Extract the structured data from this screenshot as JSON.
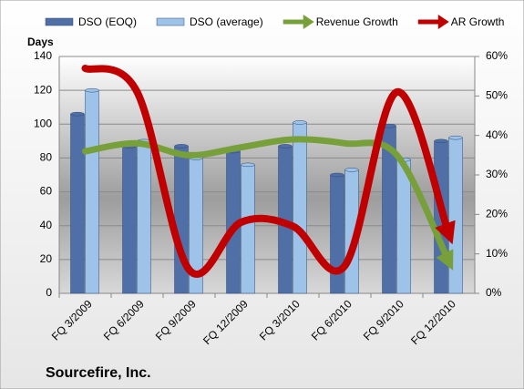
{
  "chart_data": {
    "type": "bar-line",
    "title": "Sourcefire, Inc.",
    "y_label": "Days",
    "categories": [
      "FQ 3/2009",
      "FQ 6/2009",
      "FQ 9/2009",
      "FQ 12/2009",
      "FQ 3/2010",
      "FQ 6/2010",
      "FQ 9/2010",
      "FQ 12/2010"
    ],
    "series": [
      {
        "name": "DSO (EOQ)",
        "type": "bar",
        "color": "#4f6fa6",
        "values": [
          106,
          87,
          87,
          84,
          87,
          70,
          99,
          90
        ]
      },
      {
        "name": "DSO (average)",
        "type": "bar",
        "color": "#9dc3e8",
        "values": [
          120,
          90,
          80,
          76,
          101,
          73,
          79,
          92
        ]
      },
      {
        "name": "Revenue Growth",
        "type": "line",
        "axis": "y2",
        "color": "#77a03a",
        "values": [
          36,
          38,
          35,
          37,
          39,
          38,
          35,
          8
        ]
      },
      {
        "name": "AR Growth",
        "type": "line",
        "axis": "y2",
        "color": "#c00000",
        "values": [
          57,
          51,
          6,
          18,
          17,
          7,
          51,
          15
        ]
      }
    ],
    "ylim": [
      0,
      140
    ],
    "yticks": [
      0,
      20,
      40,
      60,
      80,
      100,
      120,
      140
    ],
    "y2lim": [
      0,
      60
    ],
    "y2ticks": [
      {
        "value": 0,
        "label": "0%"
      },
      {
        "value": 10,
        "label": "10%"
      },
      {
        "value": 20,
        "label": "20%"
      },
      {
        "value": 30,
        "label": "30%"
      },
      {
        "value": 40,
        "label": "40%"
      },
      {
        "value": 50,
        "label": "50%"
      },
      {
        "value": 60,
        "label": "60%"
      }
    ],
    "legend": "top"
  }
}
